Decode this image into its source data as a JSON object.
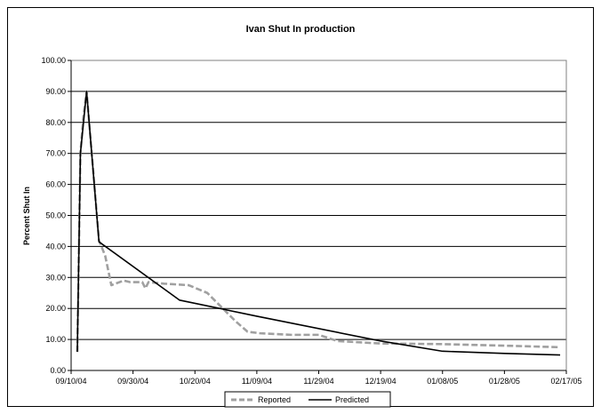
{
  "chart_data": {
    "type": "line",
    "title": "Ivan Shut In production",
    "xlabel": "",
    "ylabel": "Percent Shut In",
    "x_tick_labels": [
      "09/10/04",
      "09/30/04",
      "10/20/04",
      "11/09/04",
      "11/29/04",
      "12/19/04",
      "01/08/05",
      "01/28/05",
      "02/17/05"
    ],
    "y_tick_labels": [
      "0.00",
      "10.00",
      "20.00",
      "30.00",
      "40.00",
      "50.00",
      "60.00",
      "70.00",
      "80.00",
      "90.00",
      "100.00"
    ],
    "ylim": [
      0,
      100
    ],
    "xlim": [
      "2004-09-10",
      "2005-02-17"
    ],
    "grid": "horizontal major gridlines",
    "legend_position": "bottom",
    "series": [
      {
        "name": "Reported",
        "color": "#a0a0a0",
        "style": "dashed",
        "points": [
          [
            "2004-09-12",
            6
          ],
          [
            "2004-09-13",
            70
          ],
          [
            "2004-09-14",
            82
          ],
          [
            "2004-09-15",
            90
          ],
          [
            "2004-09-19",
            42
          ],
          [
            "2004-09-21",
            37
          ],
          [
            "2004-09-23",
            27.5
          ],
          [
            "2004-09-27",
            29
          ],
          [
            "2004-09-29",
            28.5
          ],
          [
            "2004-10-03",
            28.5
          ],
          [
            "2004-10-04",
            26.5
          ],
          [
            "2004-10-05",
            28.5
          ],
          [
            "2004-10-10",
            28
          ],
          [
            "2004-10-18",
            27.5
          ],
          [
            "2004-10-24",
            25
          ],
          [
            "2004-10-28",
            21
          ],
          [
            "2004-11-02",
            16
          ],
          [
            "2004-11-06",
            12.5
          ],
          [
            "2004-11-10",
            12
          ],
          [
            "2004-11-20",
            11.5
          ],
          [
            "2004-11-29",
            11.5
          ],
          [
            "2004-12-05",
            9.5
          ],
          [
            "2004-12-19",
            8.7
          ],
          [
            "2005-01-08",
            8.5
          ],
          [
            "2005-01-28",
            8
          ],
          [
            "2005-02-15",
            7.5
          ]
        ]
      },
      {
        "name": "Predicted",
        "color": "#000000",
        "style": "solid",
        "points": [
          [
            "2004-09-12",
            6
          ],
          [
            "2004-09-13",
            70
          ],
          [
            "2004-09-15",
            90
          ],
          [
            "2004-09-19",
            41.5
          ],
          [
            "2004-10-15",
            22.7
          ],
          [
            "2004-11-09",
            17.5
          ],
          [
            "2004-12-19",
            9.5
          ],
          [
            "2005-01-08",
            6.2
          ],
          [
            "2005-01-28",
            5.5
          ],
          [
            "2005-02-15",
            5
          ]
        ]
      }
    ]
  }
}
